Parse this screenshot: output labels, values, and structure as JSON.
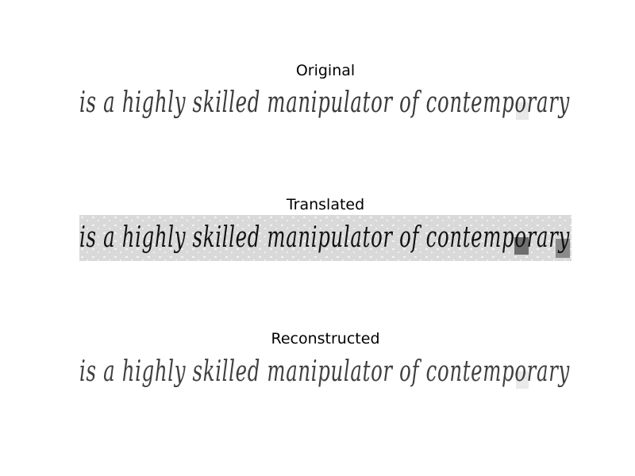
{
  "panels": [
    {
      "title": "Original"
    },
    {
      "title": "Translated"
    },
    {
      "title": "Reconstructed"
    }
  ],
  "handwriting_text": "is a highly skilled manipulator of contemporary",
  "colors": {
    "ink_light": "#3a3a3a",
    "ink_dark": "#111111",
    "translated_bg": "#d9d9d9",
    "noise_patch": "#bdbdbd"
  }
}
